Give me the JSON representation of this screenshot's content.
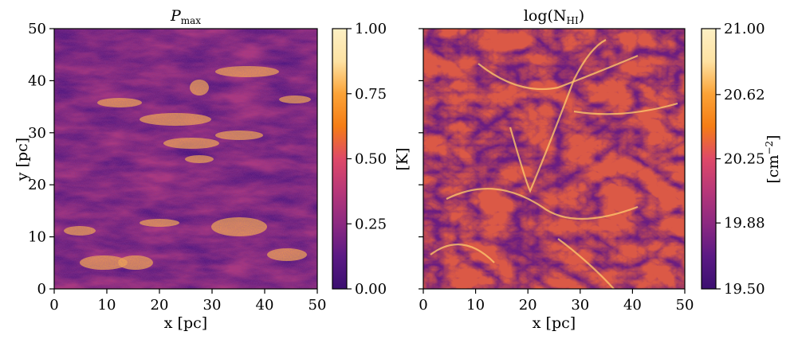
{
  "chart_data": [
    {
      "type": "heatmap",
      "title": "P_max",
      "title_main": "P",
      "title_sub": "max",
      "xlabel": "x [pc]",
      "ylabel": "y [pc]",
      "xlim": [
        0,
        50
      ],
      "ylim": [
        0,
        50
      ],
      "xticks": [
        "0",
        "10",
        "20",
        "30",
        "40",
        "50"
      ],
      "yticks": [
        "0",
        "10",
        "20",
        "30",
        "40",
        "50"
      ],
      "colormap": "inferno-like",
      "colorbar": {
        "label": "[K]",
        "range": [
          0.0,
          1.0
        ],
        "ticks": [
          "0.00",
          "0.25",
          "0.50",
          "0.75",
          "1.00"
        ]
      }
    },
    {
      "type": "heatmap",
      "title": "log(N_HI)",
      "title_main": "log(N",
      "title_sub": "HI",
      "title_close": ")",
      "xlabel": "x [pc]",
      "ylabel": "",
      "xlim": [
        0,
        50
      ],
      "ylim": [
        0,
        50
      ],
      "xticks": [
        "0",
        "10",
        "20",
        "30",
        "40",
        "50"
      ],
      "yticks": [],
      "colormap": "inferno-like",
      "colorbar": {
        "label": "[cm^-2]",
        "label_main": "[cm",
        "label_sup": "−2",
        "label_close": "]",
        "range": [
          19.5,
          21.0
        ],
        "ticks": [
          "19.50",
          "19.88",
          "20.25",
          "20.62",
          "21.00"
        ]
      }
    }
  ],
  "colors": {
    "cmap_stops": [
      "#3b0f70",
      "#5b1a84",
      "#8c2981",
      "#b73779",
      "#de4968",
      "#f57d15",
      "#fba337",
      "#fde2a3",
      "#fdf0c4"
    ]
  }
}
